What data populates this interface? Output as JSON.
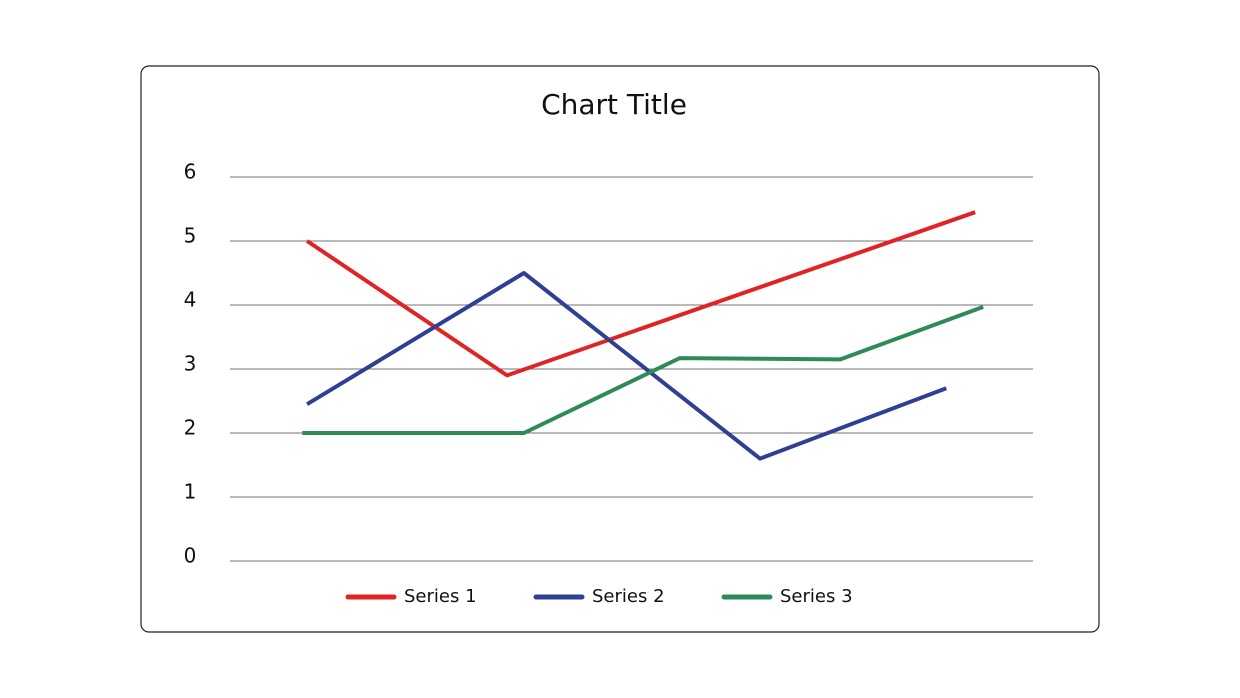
{
  "chart_data": {
    "type": "line",
    "title": "Chart Title",
    "xlim": [
      0,
      10
    ],
    "ylim": [
      0,
      6
    ],
    "yticks": [
      0,
      1,
      2,
      3,
      4,
      5,
      6
    ],
    "grid": true,
    "legend": "bottom",
    "series": [
      {
        "name": "Series 1",
        "color": "#e02424",
        "x": [
          0.96,
          3.45,
          9.28
        ],
        "values": [
          5.0,
          2.9,
          5.45
        ]
      },
      {
        "name": "Series 2",
        "color": "#2e3f94",
        "x": [
          0.96,
          3.66,
          6.6,
          8.92
        ],
        "values": [
          2.45,
          4.5,
          1.6,
          2.7
        ]
      },
      {
        "name": "Series 3",
        "color": "#2e8a57",
        "x": [
          0.9,
          3.66,
          5.6,
          7.6,
          9.38
        ],
        "values": [
          2.0,
          2.0,
          3.17,
          3.15,
          3.97
        ]
      }
    ]
  }
}
